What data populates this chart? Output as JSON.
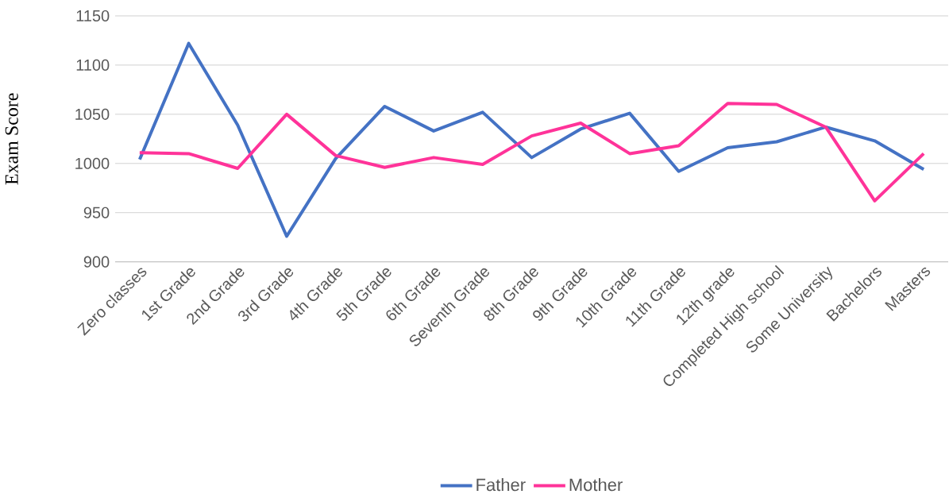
{
  "chart_data": {
    "type": "line",
    "ylabel": "Exam Score",
    "categories": [
      "Zero classes",
      "1st Grade",
      "2nd Grade",
      "3rd Grade",
      "4th Grade",
      "5th Grade",
      "6th Grade",
      "Seventh Grade",
      "8th Grade",
      "9th Grade",
      "10th Grade",
      "11th Grade",
      "12th grade",
      "Completed High school",
      "Some University",
      "Bachelors",
      "Masters"
    ],
    "series": [
      {
        "name": "Father",
        "color": "#4472c4",
        "values": [
          1004,
          1122,
          1039,
          926,
          1005,
          1058,
          1033,
          1052,
          1006,
          1035,
          1051,
          992,
          1016,
          1022,
          1037,
          1023,
          994
        ]
      },
      {
        "name": "Mother",
        "color": "#ff3399",
        "values": [
          1011,
          1010,
          995,
          1050,
          1008,
          996,
          1006,
          999,
          1028,
          1041,
          1010,
          1018,
          1061,
          1060,
          1037,
          962,
          1010
        ]
      }
    ],
    "ylim": [
      900,
      1150
    ],
    "yticks": [
      900,
      950,
      1000,
      1050,
      1100,
      1150
    ],
    "grid": "y",
    "legend": "bottom",
    "marker": "none",
    "line_style": "solid"
  }
}
